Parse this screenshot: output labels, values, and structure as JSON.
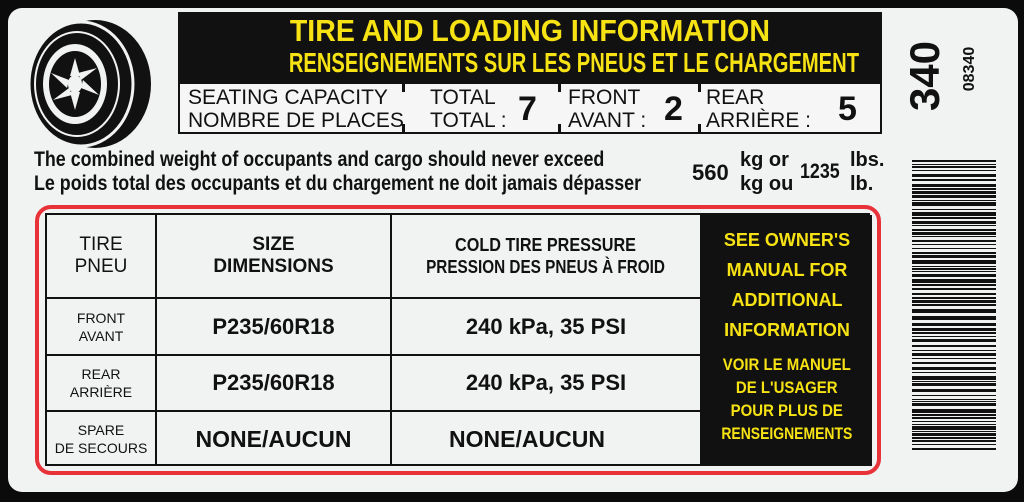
{
  "header": {
    "title_en": "TIRE AND LOADING INFORMATION",
    "title_fr": "RENSEIGNEMENTS SUR LES PNEUS ET LE CHARGEMENT"
  },
  "seating": {
    "label_en": "SEATING CAPACITY",
    "label_fr": "NOMBRE DE PLACES",
    "total_en": "TOTAL",
    "total_fr": "TOTAL :",
    "total": "7",
    "front_en": "FRONT",
    "front_fr": "AVANT :",
    "front": "2",
    "rear_en": "REAR",
    "rear_fr": "ARRIÈRE :",
    "rear": "5"
  },
  "weight": {
    "text_en": "The combined weight of occupants and cargo should never exceed",
    "text_fr": "Le poids total des occupants et du chargement ne doit jamais dépasser",
    "kg": "560",
    "kg_en": "kg or",
    "kg_fr": "kg ou",
    "lbs": "1235",
    "lbs_en": "lbs.",
    "lbs_fr": "lb."
  },
  "table": {
    "headers": [
      {
        "en": "TIRE",
        "fr": "PNEU"
      },
      {
        "en": "SIZE",
        "fr": "DIMENSIONS"
      },
      {
        "en": "COLD TIRE PRESSURE",
        "fr": "PRESSION DES PNEUS À FROID"
      }
    ],
    "rows": [
      {
        "en": "FRONT",
        "fr": "AVANT",
        "size": "P235/60R18",
        "pressure": "240 kPa, 35 PSI"
      },
      {
        "en": "REAR",
        "fr": "ARRIÈRE",
        "size": "P235/60R18",
        "pressure": "240 kPa, 35 PSI"
      },
      {
        "en": "SPARE",
        "fr": "DE SECOURS",
        "size": "NONE/AUCUN",
        "pressure": "NONE/AUCUN"
      }
    ],
    "note_en": [
      "SEE OWNER'S",
      "MANUAL FOR",
      "ADDITIONAL",
      "INFORMATION"
    ],
    "note_fr": [
      "VOIR LE MANUEL",
      "DE L'USAGER",
      "POUR PLUS DE",
      "RENSEIGNEMENTS"
    ]
  },
  "code": {
    "big": "340",
    "small": "08340"
  },
  "colors": {
    "yellow": "#f7e214",
    "red": "#e8323a",
    "black": "#111111"
  }
}
